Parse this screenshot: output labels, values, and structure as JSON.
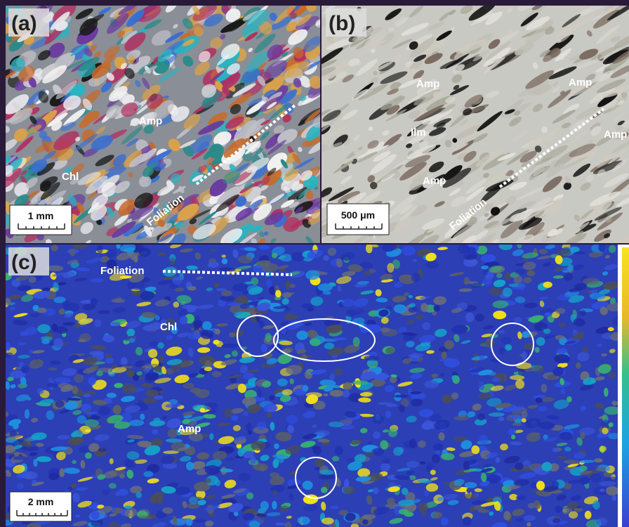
{
  "panels": [
    {
      "label": "(a)",
      "annotations": [
        "Amp",
        "Chl",
        "Foliation"
      ],
      "scale_bar": "1 mm"
    },
    {
      "label": "(b)",
      "annotations": [
        "Amp",
        "Amp",
        "Amp",
        "Ilm",
        "Amp",
        "Foliation"
      ],
      "scale_bar": "500 μm"
    },
    {
      "label": "(c)",
      "annotations": [
        "Foliation",
        "Chl",
        "Amp"
      ],
      "scale_bar": "2 mm"
    }
  ]
}
